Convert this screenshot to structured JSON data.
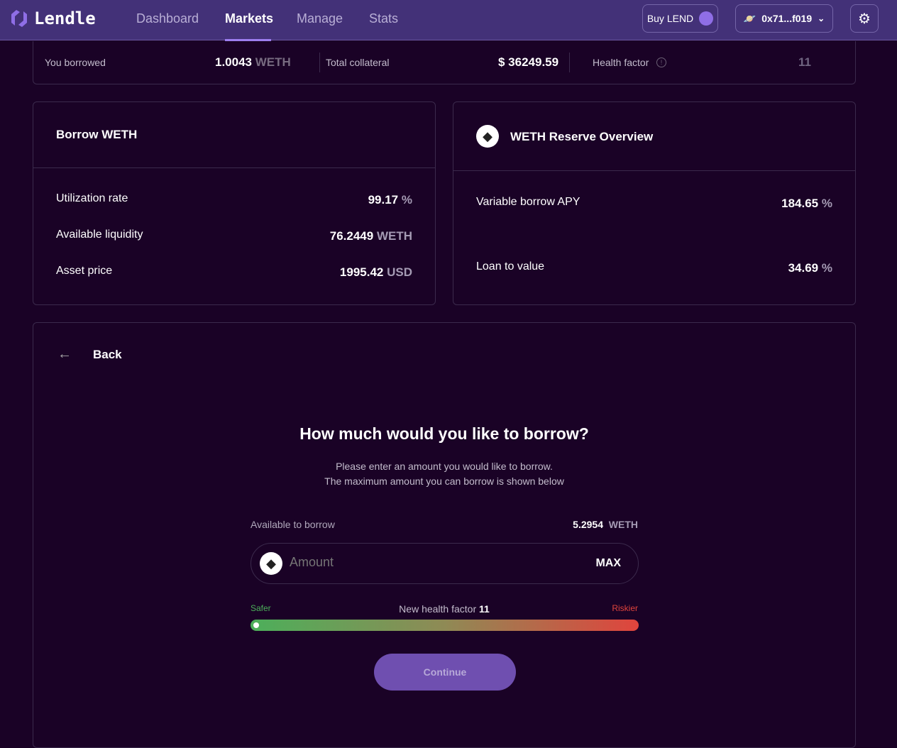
{
  "nav": {
    "brand": "Lendle",
    "links": [
      "Dashboard",
      "Markets",
      "Manage",
      "Stats"
    ],
    "buy_label": "Buy LEND",
    "wallet": "0x71...f019"
  },
  "summary": {
    "borrowed_label": "You borrowed",
    "borrowed_value": "1.0043",
    "borrowed_unit": "WETH",
    "collateral_label": "Total collateral",
    "collateral_value": "$ 36249.59",
    "health_label": "Health factor",
    "health_value": "11"
  },
  "borrow_card": {
    "title": "Borrow WETH",
    "rows": [
      {
        "label": "Utilization rate",
        "value": "99.17",
        "unit": "%"
      },
      {
        "label": "Available liquidity",
        "value": "76.2449",
        "unit": "WETH"
      },
      {
        "label": "Asset price",
        "value": "1995.42",
        "unit": "USD"
      }
    ]
  },
  "reserve_card": {
    "title": "WETH Reserve Overview",
    "rows": [
      {
        "label": "Variable borrow APY",
        "value": "184.65",
        "unit": "%"
      },
      {
        "label": "Loan to value",
        "value": "34.69",
        "unit": "%"
      }
    ]
  },
  "form": {
    "back_label": "Back",
    "heading": "How much would you like to borrow?",
    "desc1": "Please enter an amount you would like to borrow.",
    "desc2": "The maximum amount you can borrow is shown below",
    "available_label": "Available to borrow",
    "available_value": "5.2954",
    "available_unit": "WETH",
    "amount_placeholder": "Amount",
    "max_label": "MAX",
    "safer": "Safer",
    "riskier": "Riskier",
    "new_hf_label": "New health factor",
    "new_hf_value": "11",
    "risk_level": 0.0,
    "continue_label": "Continue"
  },
  "colors": {
    "accent": "#6f4fb0",
    "safer": "#4caf5a",
    "riskier": "#e0443d"
  }
}
